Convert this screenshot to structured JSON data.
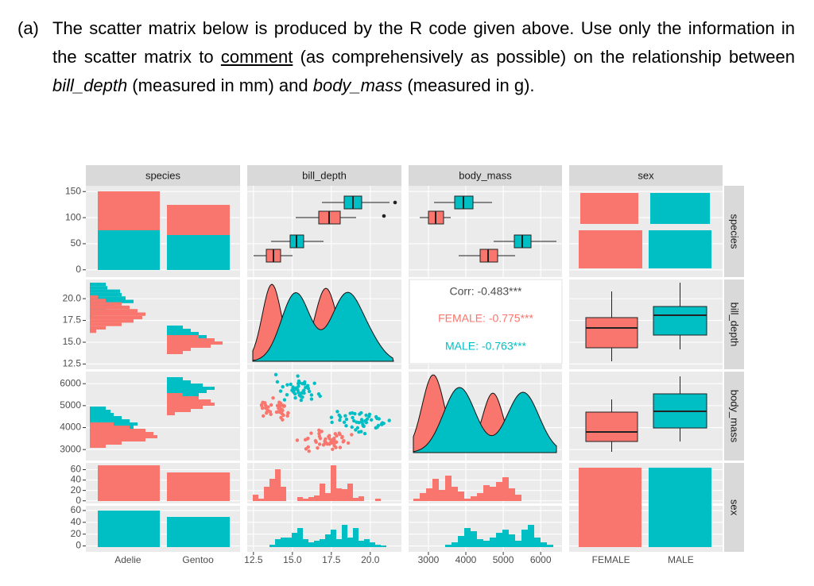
{
  "question": {
    "label": "(a)",
    "runs": [
      "The scatter matrix below is produced by the R code given above.  Use only the information in the scatter matrix to ",
      "comment",
      " (as comprehensively as possible) on the relationship between ",
      "bill_depth",
      " (measured in mm) and ",
      "body_mass",
      " (measured in g)."
    ]
  },
  "figure": {
    "column_strips": [
      "species",
      "bill_depth",
      "body_mass",
      "sex"
    ],
    "row_strips": [
      "species",
      "bill_depth",
      "body_mass",
      "sex"
    ],
    "correlation": [
      "Corr: -0.483***",
      "FEMALE: -0.775***",
      "MALE: -0.763***"
    ],
    "y_axes": [
      {
        "lim": [
          -14,
          161
        ],
        "ticks": [
          0,
          50,
          100,
          150
        ]
      },
      {
        "lim": [
          11.9,
          22.2
        ],
        "ticks": [
          12.5,
          {
            "value": 15,
            "label": "15.0"
          },
          17.5,
          {
            "value": 20,
            "label": "20.0"
          }
        ]
      },
      {
        "lim": [
          2500,
          6550
        ],
        "ticks": [
          3000,
          4000,
          5000,
          6000
        ]
      },
      {
        "lim": [
          -5,
          73
        ],
        "ticks": [
          0,
          20,
          40,
          60
        ]
      },
      {
        "lim": [
          -10,
          68
        ],
        "ticks": [
          0,
          20,
          40,
          60
        ]
      }
    ],
    "x_axes": [
      {
        "categories": [
          "Adelie",
          "Gentoo"
        ]
      },
      {
        "lim": [
          12.1,
          22.0
        ],
        "ticks": [
          12.5,
          {
            "value": 15,
            "label": "15.0"
          },
          17.5,
          {
            "value": 20,
            "label": "20.0"
          }
        ]
      },
      {
        "lim": [
          2470,
          6570
        ],
        "ticks": [
          3000,
          4000,
          5000,
          6000
        ]
      },
      {
        "categories": [
          "FEMALE",
          "MALE"
        ]
      }
    ]
  }
}
